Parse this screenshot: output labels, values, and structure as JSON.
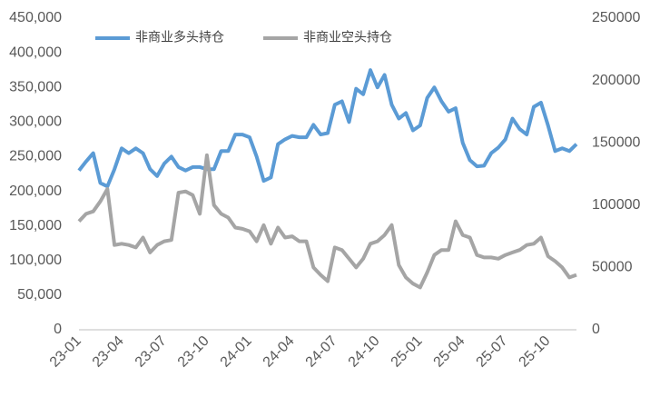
{
  "chart_data": {
    "type": "line",
    "categories": [
      "23-01",
      null,
      null,
      null,
      null,
      null,
      "23-04",
      null,
      null,
      null,
      null,
      null,
      "23-07",
      null,
      null,
      null,
      null,
      null,
      "23-10",
      null,
      null,
      null,
      null,
      null,
      "24-01",
      null,
      null,
      null,
      null,
      null,
      "24-04",
      null,
      null,
      null,
      null,
      null,
      "24-07",
      null,
      null,
      null,
      null,
      null,
      "24-10",
      null,
      null,
      null,
      null,
      null,
      "25-01",
      null,
      null,
      null,
      null,
      null,
      "25-04",
      null,
      null,
      null,
      null,
      null,
      "25-07",
      null,
      null,
      null,
      null,
      null,
      "25-10",
      null,
      null,
      null,
      null
    ],
    "series": [
      {
        "name": "非商业多头持仓",
        "color": "#5b9bd5",
        "axis": "y",
        "values": [
          230000,
          243000,
          255000,
          212000,
          207000,
          232000,
          262000,
          255000,
          262000,
          255000,
          232000,
          222000,
          240000,
          250000,
          235000,
          230000,
          235000,
          235000,
          232000,
          232000,
          258000,
          258000,
          282000,
          282000,
          278000,
          250000,
          215000,
          220000,
          268000,
          275000,
          280000,
          278000,
          278000,
          296000,
          282000,
          284000,
          325000,
          330000,
          300000,
          348000,
          340000,
          375000,
          350000,
          368000,
          325000,
          305000,
          313000,
          288000,
          295000,
          335000,
          350000,
          330000,
          315000,
          320000,
          270000,
          245000,
          236000,
          237000,
          255000,
          263000,
          275000,
          305000,
          290000,
          282000,
          322000,
          328000,
          295000,
          258000,
          262000,
          258000,
          268000
        ]
      },
      {
        "name": "非商业空头持仓",
        "color": "#a5a5a5",
        "axis": "y2",
        "values": [
          87000,
          93000,
          95000,
          103000,
          113000,
          68000,
          69000,
          68000,
          66000,
          74000,
          62000,
          68000,
          71000,
          72000,
          110000,
          111000,
          108000,
          93000,
          140000,
          100000,
          93000,
          90000,
          82000,
          81000,
          79000,
          71000,
          84000,
          69000,
          82000,
          74000,
          75000,
          71000,
          71000,
          50000,
          44000,
          39000,
          66000,
          64000,
          57000,
          50000,
          57000,
          69000,
          71000,
          76000,
          84000,
          52000,
          42000,
          37000,
          34000,
          46000,
          60000,
          64000,
          64000,
          87000,
          76000,
          74000,
          60000,
          58000,
          58000,
          57000,
          60000,
          62000,
          64000,
          68000,
          69000,
          74000,
          59000,
          55000,
          50000,
          42000,
          44000
        ]
      }
    ],
    "ylim": [
      0,
      450000
    ],
    "yticks": [
      0,
      {
        "value": 50000,
        "label": "50,000"
      },
      {
        "value": 100000,
        "label": "100,000"
      },
      {
        "value": 150000,
        "label": "150,000"
      },
      {
        "value": 200000,
        "label": "200,000"
      },
      {
        "value": 250000,
        "label": "250,000"
      },
      {
        "value": 300000,
        "label": "300,000"
      },
      {
        "value": 350000,
        "label": "350,000"
      },
      {
        "value": 400000,
        "label": "400,000"
      },
      {
        "value": 450000,
        "label": "450,000"
      }
    ],
    "y2lim": [
      0,
      250000
    ],
    "y2ticks": [
      0,
      50000,
      100000,
      150000,
      200000,
      250000
    ],
    "legend": "top-left",
    "grid": false
  }
}
